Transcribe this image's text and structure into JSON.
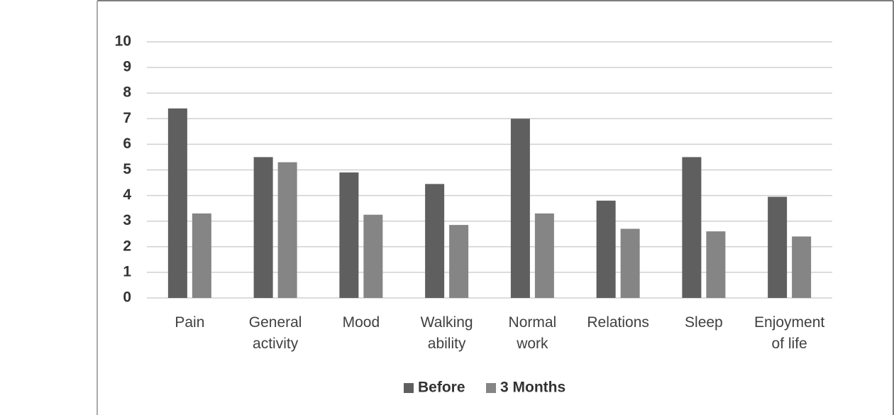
{
  "chart_data": {
    "type": "bar",
    "categories": [
      "Pain",
      "General activity",
      "Mood",
      "Walking ability",
      "Normal work",
      "Relations",
      "Sleep",
      "Enjoyment of life"
    ],
    "series": [
      {
        "name": "Before",
        "color": "#5f5f5f",
        "values": [
          7.4,
          5.5,
          4.9,
          4.45,
          7.0,
          3.8,
          5.5,
          3.95
        ]
      },
      {
        "name": "3 Months",
        "color": "#858585",
        "values": [
          3.3,
          5.3,
          3.25,
          2.85,
          3.3,
          2.7,
          2.6,
          2.4
        ]
      }
    ],
    "ylim": [
      0,
      10
    ],
    "yticks": [
      0,
      1,
      2,
      3,
      4,
      5,
      6,
      7,
      8,
      9,
      10
    ],
    "grid": true,
    "legend": "bottom"
  }
}
